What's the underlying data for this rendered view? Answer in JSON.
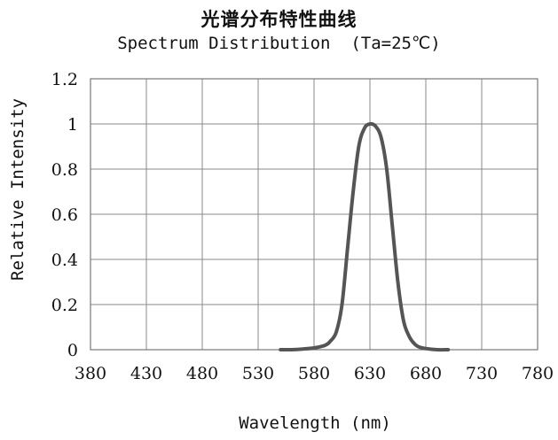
{
  "chart_data": {
    "type": "line",
    "title": "光谱分布特性曲线",
    "subtitle": "Spectrum Distribution  (Ta=25℃)",
    "xlabel": "Wavelength (nm)",
    "ylabel": "Relative Intensity",
    "xlim": [
      380,
      780
    ],
    "ylim": [
      0,
      1.2
    ],
    "x_ticks": [
      "380",
      "430",
      "480",
      "530",
      "580",
      "630",
      "680",
      "730",
      "780"
    ],
    "y_ticks": [
      "0",
      "0.2",
      "0.4",
      "0.6",
      "0.8",
      "1",
      "1.2"
    ],
    "grid": true,
    "line_color": "#555555",
    "series": [
      {
        "x": [
          550,
          560,
          570,
          580,
          590,
          595,
          600,
          605,
          610,
          615,
          620,
          625,
          630,
          635,
          640,
          645,
          650,
          655,
          660,
          665,
          670,
          675,
          680,
          690,
          700
        ],
        "values": [
          0.0,
          0.0,
          0.003,
          0.008,
          0.02,
          0.04,
          0.08,
          0.2,
          0.45,
          0.7,
          0.9,
          0.98,
          1.0,
          0.99,
          0.94,
          0.8,
          0.55,
          0.3,
          0.13,
          0.06,
          0.025,
          0.01,
          0.005,
          0.0,
          0.0
        ]
      }
    ]
  }
}
